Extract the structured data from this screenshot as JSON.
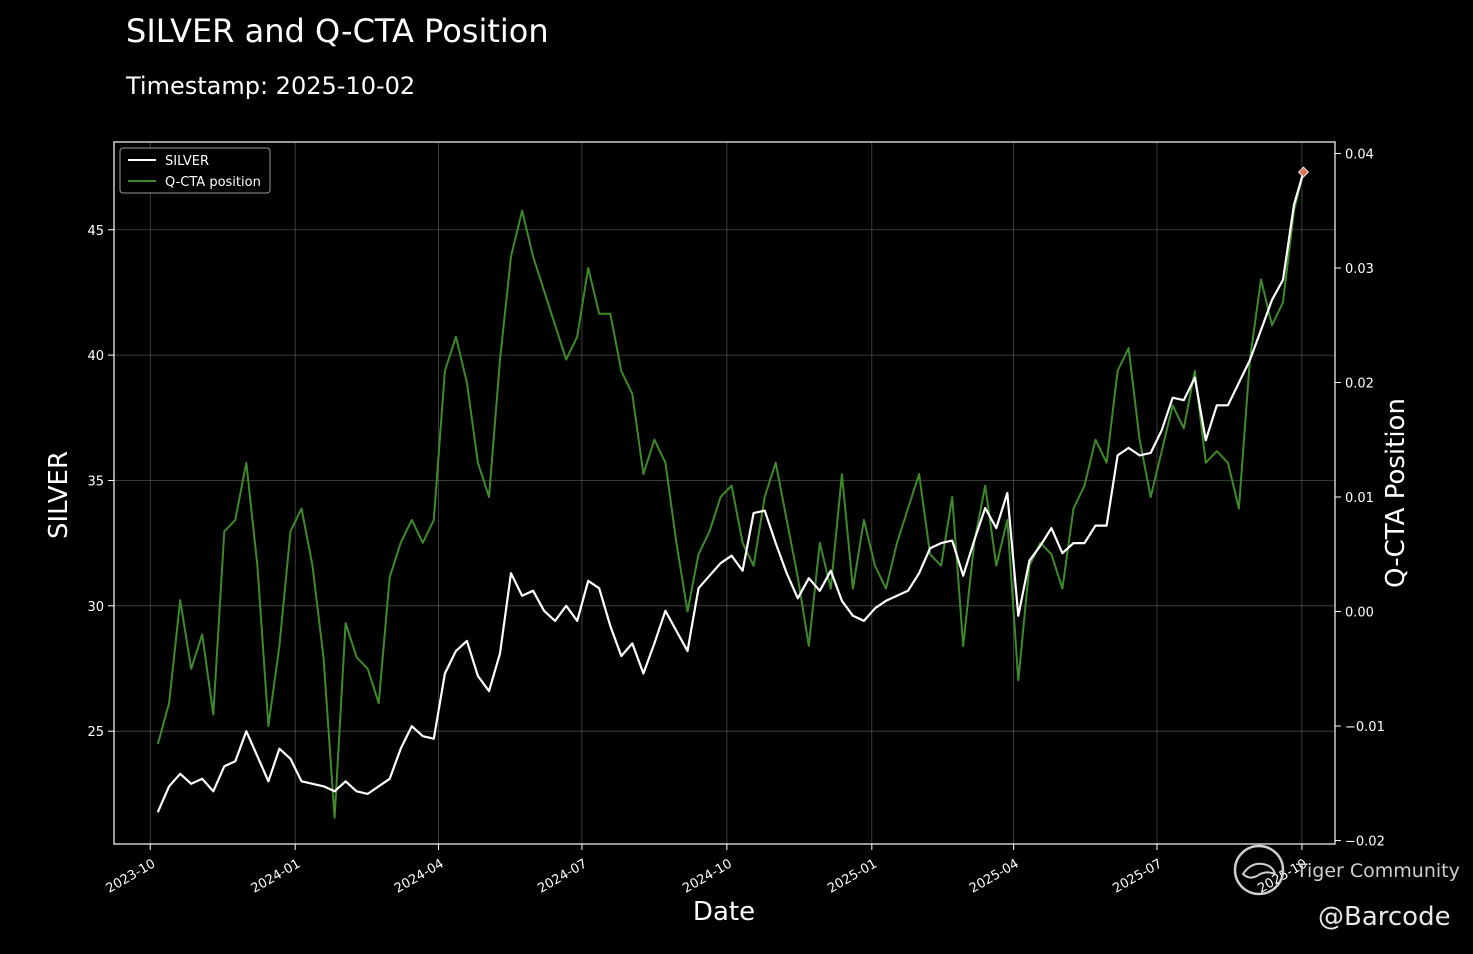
{
  "chart_data": {
    "type": "line",
    "title": "SILVER and Q-CTA Position",
    "subtitle": "Timestamp: 2025-10-02",
    "xlabel": "Date",
    "ylabel_left": "SILVER",
    "ylabel_right": "Q-CTA Position",
    "xlim": [
      "2023-09-08",
      "2025-10-22"
    ],
    "ylim_left": [
      20.5,
      48.5
    ],
    "ylim_right": [
      -0.0203,
      0.041
    ],
    "x_ticks": [
      "2023-10",
      "2024-01",
      "2024-04",
      "2024-07",
      "2024-10",
      "2025-01",
      "2025-04",
      "2025-07",
      "2025-10"
    ],
    "y_ticks_left": [
      25,
      30,
      35,
      40,
      45
    ],
    "y_ticks_right": [
      "−0.02",
      "−0.01",
      "0.00",
      "0.01",
      "0.02",
      "0.03",
      "0.04"
    ],
    "y_ticks_right_values": [
      -0.02,
      -0.01,
      0.0,
      0.01,
      0.02,
      0.03,
      0.04
    ],
    "grid": true,
    "legend_position": "top-left",
    "series": [
      {
        "name": "SILVER",
        "axis": "left",
        "color": "#ffffff",
        "points": [
          [
            "2023-10-06",
            21.8
          ],
          [
            "2023-10-13",
            22.8
          ],
          [
            "2023-10-20",
            23.3
          ],
          [
            "2023-10-27",
            22.9
          ],
          [
            "2023-11-03",
            23.1
          ],
          [
            "2023-11-10",
            22.6
          ],
          [
            "2023-11-17",
            23.6
          ],
          [
            "2023-11-24",
            23.8
          ],
          [
            "2023-12-01",
            25.0
          ],
          [
            "2023-12-08",
            24.0
          ],
          [
            "2023-12-15",
            23.0
          ],
          [
            "2023-12-22",
            24.3
          ],
          [
            "2023-12-29",
            23.9
          ],
          [
            "2024-01-05",
            23.0
          ],
          [
            "2024-01-12",
            22.9
          ],
          [
            "2024-01-19",
            22.8
          ],
          [
            "2024-01-26",
            22.6
          ],
          [
            "2024-02-02",
            23.0
          ],
          [
            "2024-02-09",
            22.6
          ],
          [
            "2024-02-16",
            22.5
          ],
          [
            "2024-02-23",
            22.8
          ],
          [
            "2024-03-01",
            23.1
          ],
          [
            "2024-03-08",
            24.3
          ],
          [
            "2024-03-15",
            25.2
          ],
          [
            "2024-03-22",
            24.8
          ],
          [
            "2024-03-29",
            24.7
          ],
          [
            "2024-04-05",
            27.3
          ],
          [
            "2024-04-12",
            28.2
          ],
          [
            "2024-04-19",
            28.6
          ],
          [
            "2024-04-26",
            27.2
          ],
          [
            "2024-05-03",
            26.6
          ],
          [
            "2024-05-10",
            28.1
          ],
          [
            "2024-05-17",
            31.3
          ],
          [
            "2024-05-24",
            30.4
          ],
          [
            "2024-05-31",
            30.6
          ],
          [
            "2024-06-07",
            29.8
          ],
          [
            "2024-06-14",
            29.4
          ],
          [
            "2024-06-21",
            30.0
          ],
          [
            "2024-06-28",
            29.4
          ],
          [
            "2024-07-05",
            31.0
          ],
          [
            "2024-07-12",
            30.7
          ],
          [
            "2024-07-19",
            29.2
          ],
          [
            "2024-07-26",
            28.0
          ],
          [
            "2024-08-02",
            28.5
          ],
          [
            "2024-08-09",
            27.3
          ],
          [
            "2024-08-16",
            28.5
          ],
          [
            "2024-08-23",
            29.8
          ],
          [
            "2024-08-30",
            29.0
          ],
          [
            "2024-09-06",
            28.2
          ],
          [
            "2024-09-13",
            30.7
          ],
          [
            "2024-09-20",
            31.2
          ],
          [
            "2024-09-27",
            31.7
          ],
          [
            "2024-10-04",
            32.0
          ],
          [
            "2024-10-11",
            31.4
          ],
          [
            "2024-10-18",
            33.7
          ],
          [
            "2024-10-25",
            33.8
          ],
          [
            "2024-11-01",
            32.5
          ],
          [
            "2024-11-08",
            31.3
          ],
          [
            "2024-11-15",
            30.3
          ],
          [
            "2024-11-22",
            31.1
          ],
          [
            "2024-11-29",
            30.6
          ],
          [
            "2024-12-06",
            31.4
          ],
          [
            "2024-12-13",
            30.2
          ],
          [
            "2024-12-20",
            29.6
          ],
          [
            "2024-12-27",
            29.4
          ],
          [
            "2025-01-03",
            29.9
          ],
          [
            "2025-01-10",
            30.2
          ],
          [
            "2025-01-17",
            30.4
          ],
          [
            "2025-01-24",
            30.6
          ],
          [
            "2025-01-31",
            31.3
          ],
          [
            "2025-02-07",
            32.3
          ],
          [
            "2025-02-14",
            32.5
          ],
          [
            "2025-02-21",
            32.6
          ],
          [
            "2025-02-28",
            31.2
          ],
          [
            "2025-03-07",
            32.6
          ],
          [
            "2025-03-14",
            33.9
          ],
          [
            "2025-03-21",
            33.1
          ],
          [
            "2025-03-28",
            34.5
          ],
          [
            "2025-04-04",
            29.6
          ],
          [
            "2025-04-11",
            31.8
          ],
          [
            "2025-04-18",
            32.4
          ],
          [
            "2025-04-25",
            33.1
          ],
          [
            "2025-05-02",
            32.1
          ],
          [
            "2025-05-09",
            32.5
          ],
          [
            "2025-05-16",
            32.5
          ],
          [
            "2025-05-23",
            33.2
          ],
          [
            "2025-05-30",
            33.2
          ],
          [
            "2025-06-06",
            36.0
          ],
          [
            "2025-06-13",
            36.3
          ],
          [
            "2025-06-20",
            36.0
          ],
          [
            "2025-06-27",
            36.1
          ],
          [
            "2025-07-04",
            37.0
          ],
          [
            "2025-07-11",
            38.3
          ],
          [
            "2025-07-18",
            38.2
          ],
          [
            "2025-07-25",
            39.1
          ],
          [
            "2025-08-01",
            36.6
          ],
          [
            "2025-08-08",
            38.0
          ],
          [
            "2025-08-15",
            38.0
          ],
          [
            "2025-08-22",
            38.9
          ],
          [
            "2025-08-29",
            39.8
          ],
          [
            "2025-09-05",
            41.0
          ],
          [
            "2025-09-12",
            42.2
          ],
          [
            "2025-09-19",
            43.0
          ],
          [
            "2025-09-26",
            46.0
          ],
          [
            "2025-10-02",
            47.3
          ]
        ]
      },
      {
        "name": "Q-CTA position",
        "axis": "right",
        "color": "#3e8a2a",
        "points": [
          [
            "2023-10-06",
            -0.0115
          ],
          [
            "2023-10-13",
            -0.008
          ],
          [
            "2023-10-20",
            0.001
          ],
          [
            "2023-10-27",
            -0.005
          ],
          [
            "2023-11-03",
            -0.002
          ],
          [
            "2023-11-10",
            -0.009
          ],
          [
            "2023-11-17",
            0.007
          ],
          [
            "2023-11-24",
            0.008
          ],
          [
            "2023-12-01",
            0.013
          ],
          [
            "2023-12-08",
            0.004
          ],
          [
            "2023-12-15",
            -0.01
          ],
          [
            "2023-12-22",
            -0.003
          ],
          [
            "2023-12-29",
            0.007
          ],
          [
            "2024-01-05",
            0.009
          ],
          [
            "2024-01-12",
            0.004
          ],
          [
            "2024-01-19",
            -0.004
          ],
          [
            "2024-01-26",
            -0.018
          ],
          [
            "2024-02-02",
            -0.001
          ],
          [
            "2024-02-09",
            -0.004
          ],
          [
            "2024-02-16",
            -0.005
          ],
          [
            "2024-02-23",
            -0.008
          ],
          [
            "2024-03-01",
            0.003
          ],
          [
            "2024-03-08",
            0.006
          ],
          [
            "2024-03-15",
            0.008
          ],
          [
            "2024-03-22",
            0.006
          ],
          [
            "2024-03-29",
            0.008
          ],
          [
            "2024-04-05",
            0.021
          ],
          [
            "2024-04-12",
            0.024
          ],
          [
            "2024-04-19",
            0.02
          ],
          [
            "2024-04-26",
            0.013
          ],
          [
            "2024-05-03",
            0.01
          ],
          [
            "2024-05-10",
            0.022
          ],
          [
            "2024-05-17",
            0.031
          ],
          [
            "2024-05-24",
            0.035
          ],
          [
            "2024-05-31",
            0.031
          ],
          [
            "2024-06-07",
            0.028
          ],
          [
            "2024-06-14",
            0.025
          ],
          [
            "2024-06-21",
            0.022
          ],
          [
            "2024-06-28",
            0.024
          ],
          [
            "2024-07-05",
            0.03
          ],
          [
            "2024-07-12",
            0.026
          ],
          [
            "2024-07-19",
            0.026
          ],
          [
            "2024-07-26",
            0.021
          ],
          [
            "2024-08-02",
            0.019
          ],
          [
            "2024-08-09",
            0.012
          ],
          [
            "2024-08-16",
            0.015
          ],
          [
            "2024-08-23",
            0.013
          ],
          [
            "2024-08-30",
            0.006
          ],
          [
            "2024-09-06",
            0.0
          ],
          [
            "2024-09-13",
            0.005
          ],
          [
            "2024-09-20",
            0.007
          ],
          [
            "2024-09-27",
            0.01
          ],
          [
            "2024-10-04",
            0.011
          ],
          [
            "2024-10-11",
            0.006
          ],
          [
            "2024-10-18",
            0.004
          ],
          [
            "2024-10-25",
            0.01
          ],
          [
            "2024-11-01",
            0.013
          ],
          [
            "2024-11-08",
            0.008
          ],
          [
            "2024-11-15",
            0.003
          ],
          [
            "2024-11-22",
            -0.003
          ],
          [
            "2024-11-29",
            0.006
          ],
          [
            "2024-12-06",
            0.002
          ],
          [
            "2024-12-13",
            0.012
          ],
          [
            "2024-12-20",
            0.002
          ],
          [
            "2024-12-27",
            0.008
          ],
          [
            "2025-01-03",
            0.004
          ],
          [
            "2025-01-10",
            0.002
          ],
          [
            "2025-01-17",
            0.006
          ],
          [
            "2025-01-24",
            0.009
          ],
          [
            "2025-01-31",
            0.012
          ],
          [
            "2025-02-07",
            0.005
          ],
          [
            "2025-02-14",
            0.004
          ],
          [
            "2025-02-21",
            0.01
          ],
          [
            "2025-02-28",
            -0.003
          ],
          [
            "2025-03-07",
            0.006
          ],
          [
            "2025-03-14",
            0.011
          ],
          [
            "2025-03-21",
            0.004
          ],
          [
            "2025-03-28",
            0.008
          ],
          [
            "2025-04-04",
            -0.006
          ],
          [
            "2025-04-11",
            0.004
          ],
          [
            "2025-04-18",
            0.006
          ],
          [
            "2025-04-25",
            0.005
          ],
          [
            "2025-05-02",
            0.002
          ],
          [
            "2025-05-09",
            0.009
          ],
          [
            "2025-05-16",
            0.011
          ],
          [
            "2025-05-23",
            0.015
          ],
          [
            "2025-05-30",
            0.013
          ],
          [
            "2025-06-06",
            0.021
          ],
          [
            "2025-06-13",
            0.023
          ],
          [
            "2025-06-20",
            0.015
          ],
          [
            "2025-06-27",
            0.01
          ],
          [
            "2025-07-04",
            0.014
          ],
          [
            "2025-07-11",
            0.018
          ],
          [
            "2025-07-18",
            0.016
          ],
          [
            "2025-07-25",
            0.021
          ],
          [
            "2025-08-01",
            0.013
          ],
          [
            "2025-08-08",
            0.014
          ],
          [
            "2025-08-15",
            0.013
          ],
          [
            "2025-08-22",
            0.009
          ],
          [
            "2025-08-29",
            0.022
          ],
          [
            "2025-09-05",
            0.029
          ],
          [
            "2025-09-12",
            0.025
          ],
          [
            "2025-09-19",
            0.027
          ],
          [
            "2025-09-26",
            0.035
          ],
          [
            "2025-10-02",
            0.0385
          ]
        ]
      }
    ],
    "marker": {
      "date": "2025-10-02",
      "value": 47.3,
      "axis": "left",
      "shape": "diamond",
      "color": "#d9765f"
    }
  },
  "watermark": {
    "text": "Tiger Community",
    "handle": "@Barcode"
  }
}
